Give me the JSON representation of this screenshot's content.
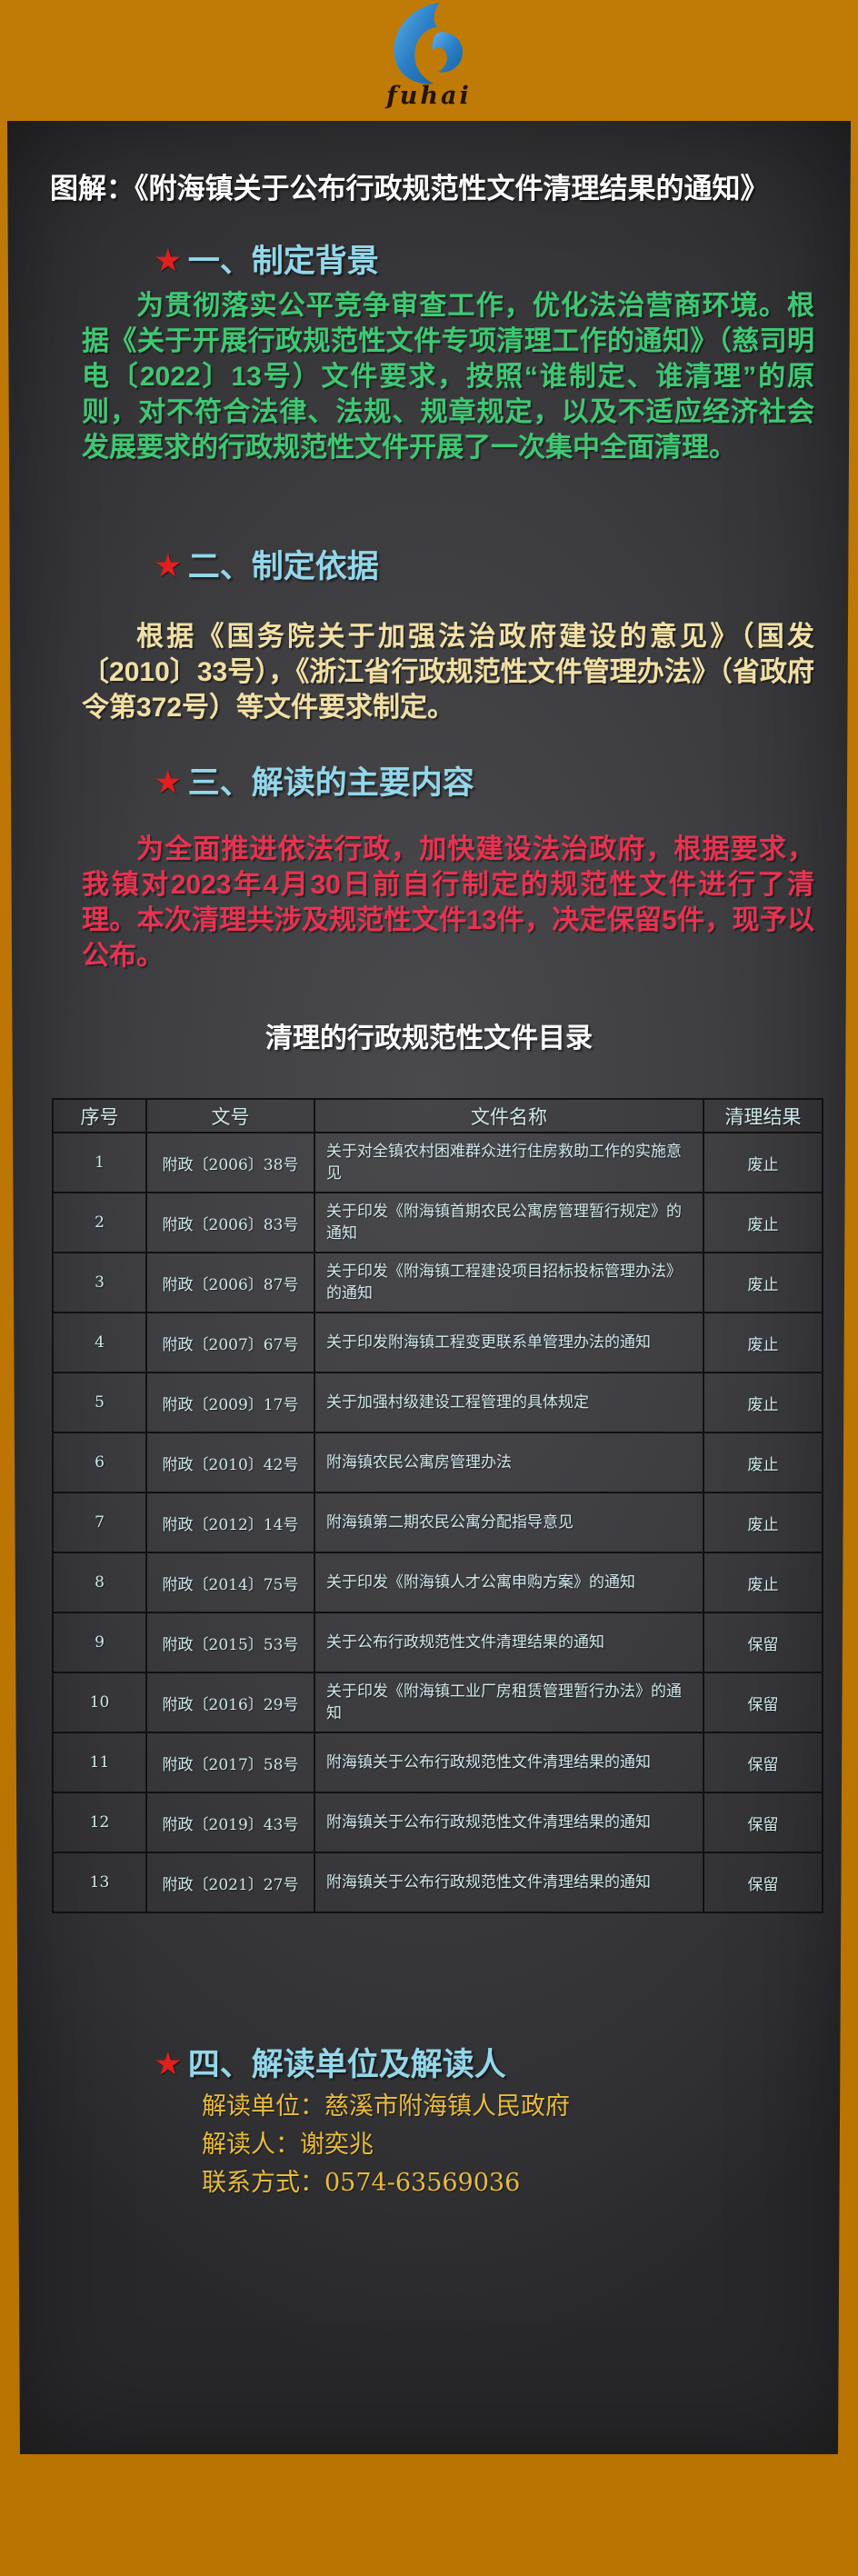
{
  "logo": {
    "brand": "fuhai",
    "icon": "wave-swirl-icon",
    "band_color": "#bc7503",
    "wave_color": "#2b7fc4"
  },
  "title": "图解：《附海镇关于公布行政规范性文件清理结果的通知》",
  "colors": {
    "panel_dark": "#3e3e41",
    "heading_cyan": "#93d7ea",
    "star_red": "#e01f1f",
    "para_green": "#3fc873",
    "para_cream": "#f2e0a4",
    "para_red": "#e73350",
    "contact_gold": "#e9bb3c",
    "table_text": "#cfe8ea"
  },
  "sections": [
    {
      "marker": "★",
      "heading": "一、制定背景",
      "body": "为贯彻落实公平竞争审查工作，优化法治营商环境。根据《关于开展行政规范性文件专项清理工作的通知》（慈司明电〔2022〕13号）文件要求，按照“谁制定、谁清理”的原则，对不符合法律、法规、规章规定，以及不适应经济社会发展要求的行政规范性文件开展了一次集中全面清理。"
    },
    {
      "marker": "★",
      "heading": "二、制定依据",
      "body": "根据《国务院关于加强法治政府建设的意见》（国发〔2010〕33号），《浙江省行政规范性文件管理办法》（省政府令第372号）等文件要求制定。"
    },
    {
      "marker": "★",
      "heading": "三、解读的主要内容",
      "body": "为全面推进依法行政，加快建设法治政府，根据要求，我镇对2023年4月30日前自行制定的规范性文件进行了清理。本次清理共涉及规范性文件13件，决定保留5件，现予以公布。"
    },
    {
      "marker": "★",
      "heading": "四、解读单位及解读人"
    }
  ],
  "table": {
    "title": "清理的行政规范性文件目录",
    "headers": [
      "序号",
      "文号",
      "文件名称",
      "清理结果"
    ],
    "rows": [
      [
        "1",
        "附政〔2006〕38号",
        "关于对全镇农村困难群众进行住房救助工作的实施意见",
        "废止"
      ],
      [
        "2",
        "附政〔2006〕83号",
        "关于印发《附海镇首期农民公寓房管理暂行规定》的通知",
        "废止"
      ],
      [
        "3",
        "附政〔2006〕87号",
        "关于印发《附海镇工程建设项目招标投标管理办法》的通知",
        "废止"
      ],
      [
        "4",
        "附政〔2007〕67号",
        "关于印发附海镇工程变更联系单管理办法的通知",
        "废止"
      ],
      [
        "5",
        "附政〔2009〕17号",
        "关于加强村级建设工程管理的具体规定",
        "废止"
      ],
      [
        "6",
        "附政〔2010〕42号",
        "附海镇农民公寓房管理办法",
        "废止"
      ],
      [
        "7",
        "附政〔2012〕14号",
        "附海镇第二期农民公寓分配指导意见",
        "废止"
      ],
      [
        "8",
        "附政〔2014〕75号",
        "关于印发《附海镇人才公寓申购方案》的通知",
        "废止"
      ],
      [
        "9",
        "附政〔2015〕53号",
        "关于公布行政规范性文件清理结果的通知",
        "保留"
      ],
      [
        "10",
        "附政〔2016〕29号",
        "关于印发《附海镇工业厂房租赁管理暂行办法》的通知",
        "保留"
      ],
      [
        "11",
        "附政〔2017〕58号",
        "附海镇关于公布行政规范性文件清理结果的通知",
        "保留"
      ],
      [
        "12",
        "附政〔2019〕43号",
        "附海镇关于公布行政规范性文件清理结果的通知",
        "保留"
      ],
      [
        "13",
        "附政〔2021〕27号",
        "附海镇关于公布行政规范性文件清理结果的通知",
        "保留"
      ]
    ]
  },
  "contact": {
    "lines": [
      "解读单位：慈溪市附海镇人民政府",
      "解读人：谢奕兆",
      "联系方式：0574-63569036"
    ]
  }
}
